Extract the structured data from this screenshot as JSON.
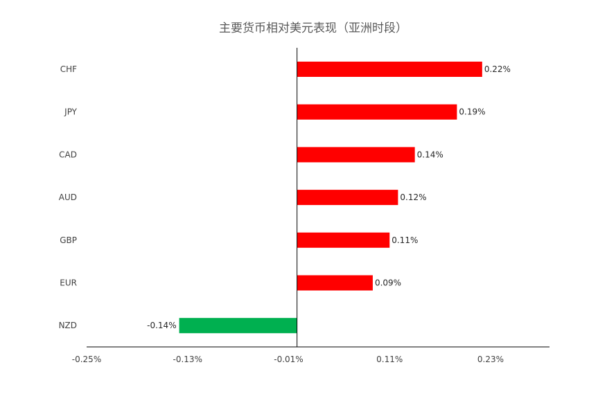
{
  "chart_data": {
    "type": "bar",
    "orientation": "horizontal",
    "title": "主要货币相对美元表现（亚洲时段）",
    "categories": [
      "CHF",
      "JPY",
      "CAD",
      "AUD",
      "GBP",
      "EUR",
      "NZD"
    ],
    "values": [
      0.22,
      0.19,
      0.14,
      0.12,
      0.11,
      0.09,
      -0.14
    ],
    "data_labels": [
      "0.22%",
      "0.19%",
      "0.14%",
      "0.12%",
      "0.11%",
      "0.09%",
      "-0.14%"
    ],
    "xlim": [
      -0.25,
      0.3
    ],
    "xticks": [
      -0.25,
      -0.13,
      -0.01,
      0.11,
      0.23
    ],
    "xtick_labels": [
      "-0.25%",
      "-0.13%",
      "-0.01%",
      "0.11%",
      "0.23%"
    ],
    "xlabel": "",
    "ylabel": "",
    "grid": false,
    "legend": "none",
    "colors": {
      "positive": "#ff0000",
      "negative": "#00b050"
    }
  }
}
